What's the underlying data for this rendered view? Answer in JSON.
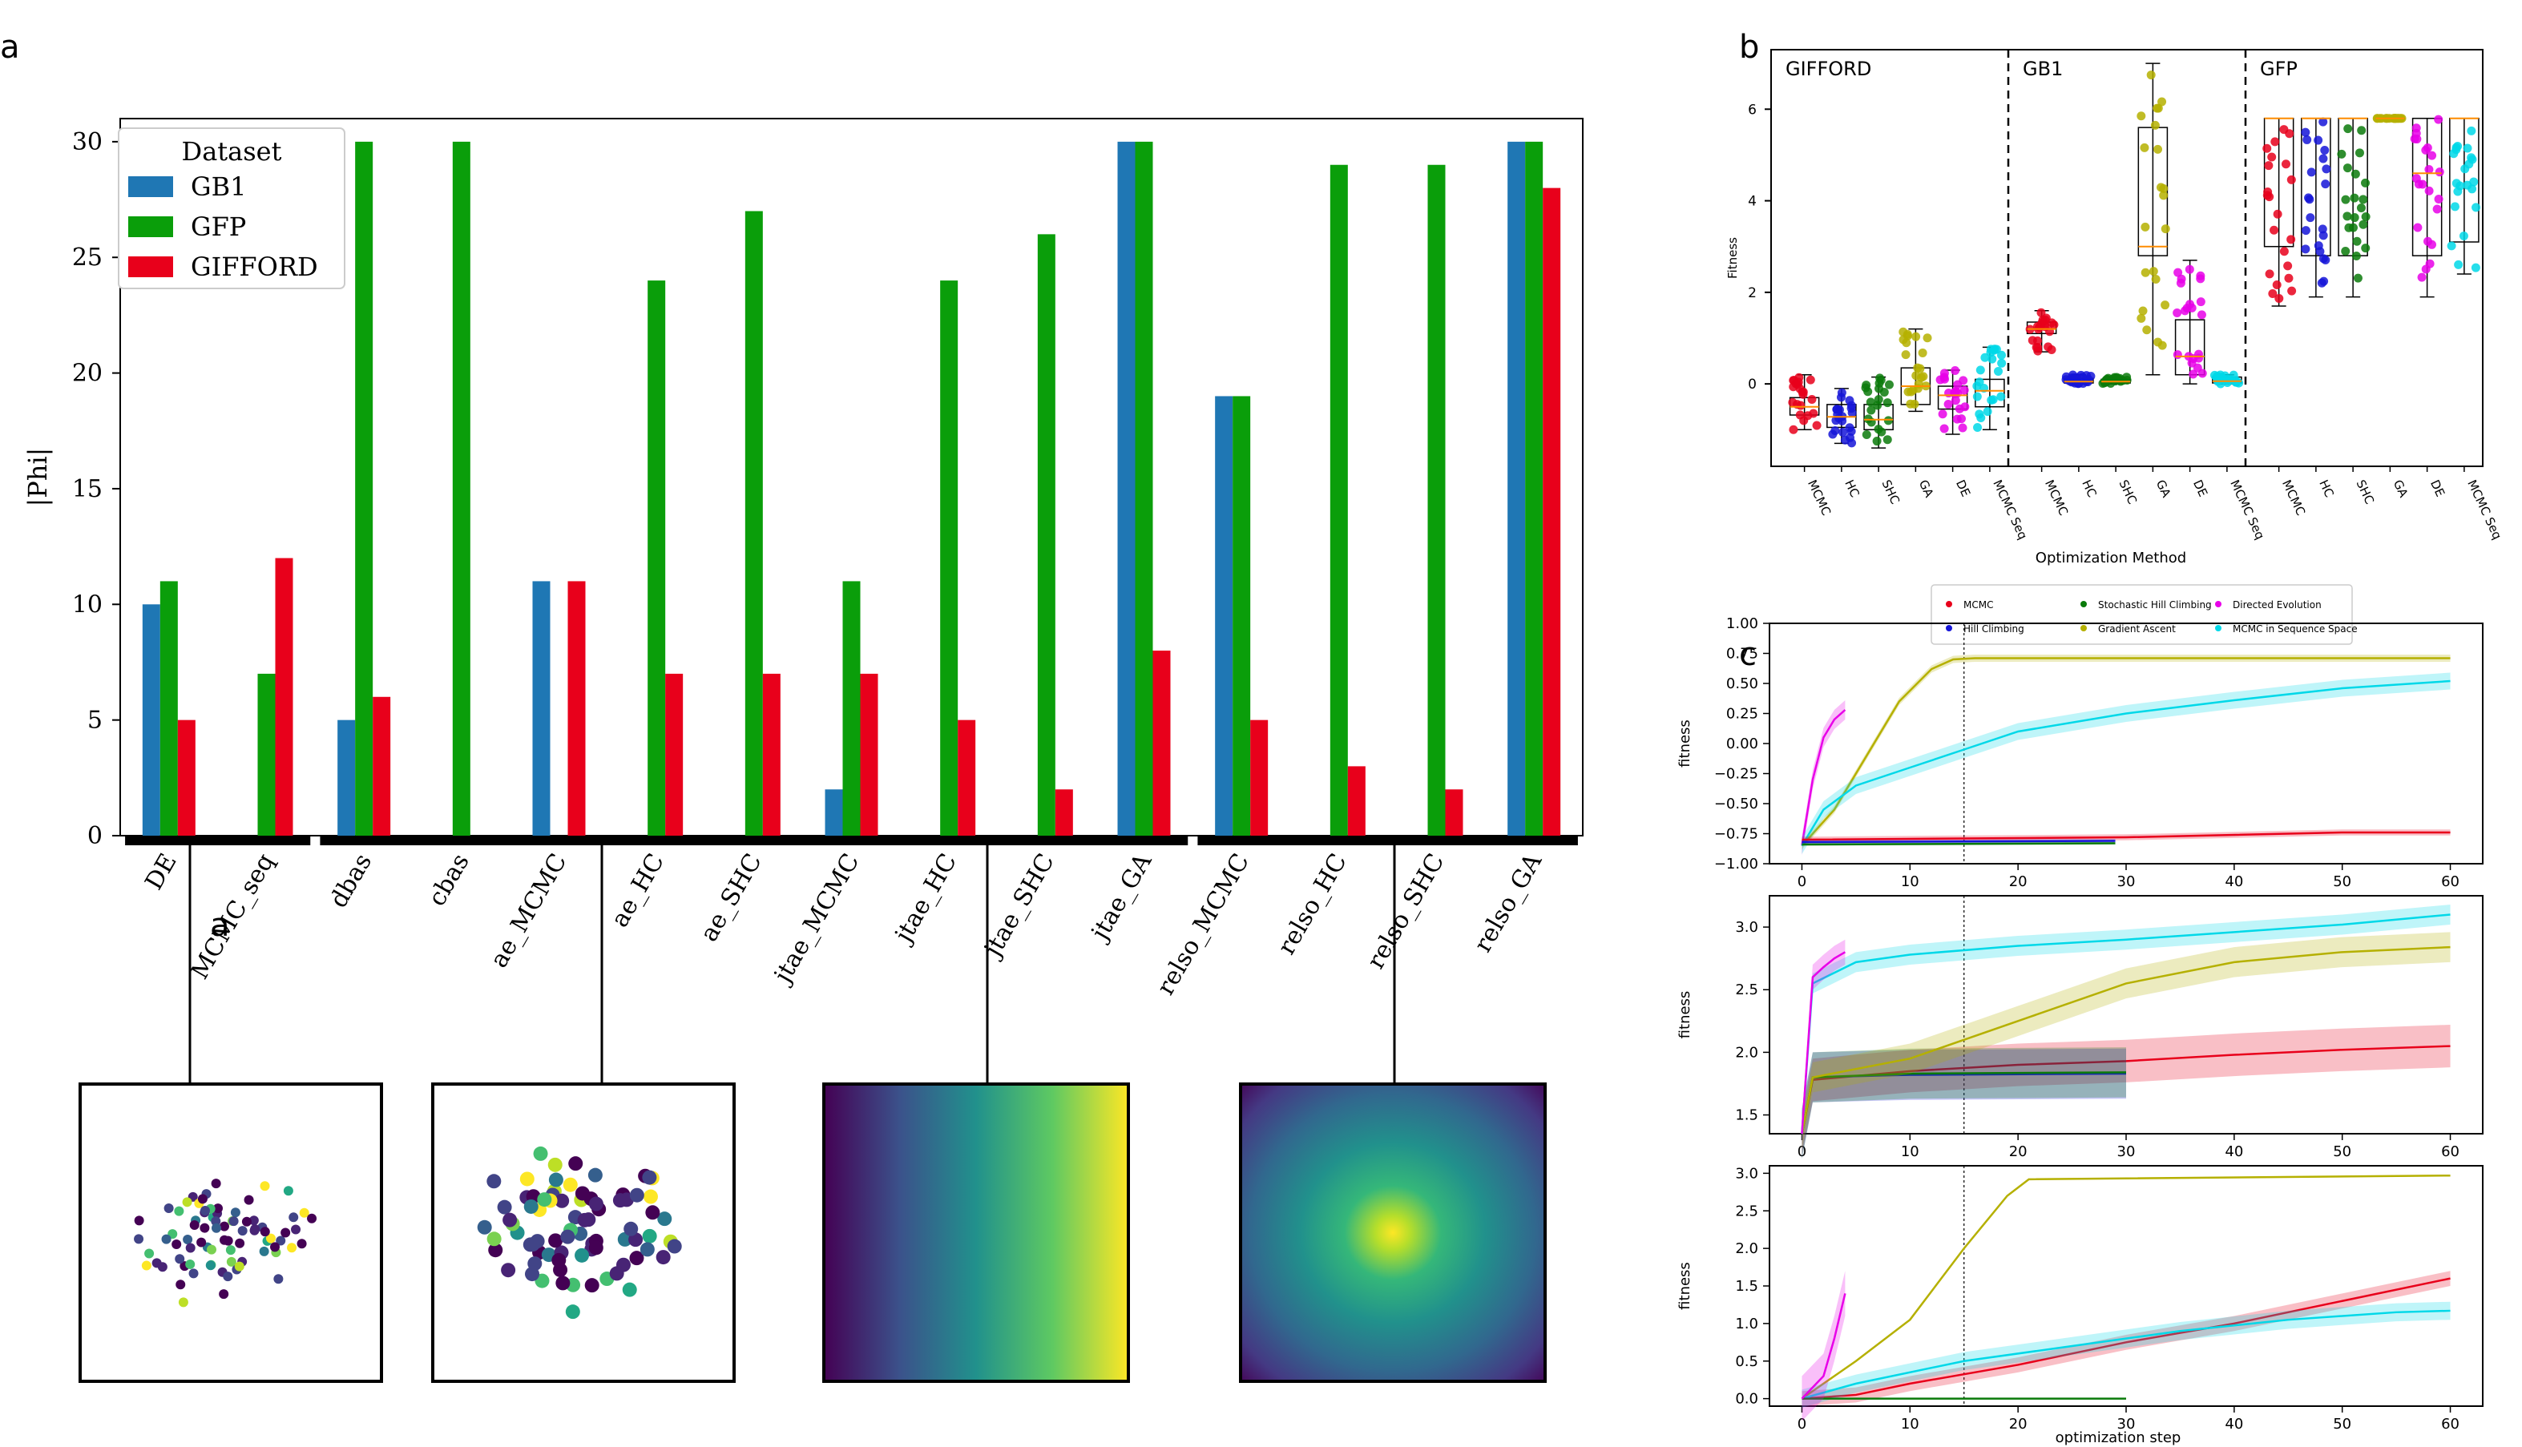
{
  "panel_letters": {
    "a": "a",
    "b": "b",
    "c": "c",
    "a_inner": "a"
  },
  "chart_data": [
    {
      "id": "a",
      "type": "bar",
      "ylabel": "|Phi|",
      "ylim": [
        0,
        31
      ],
      "yticks": [
        0,
        5,
        10,
        15,
        20,
        25,
        30
      ],
      "categories": [
        "DE",
        "MCMC_seq",
        "dbas",
        "cbas",
        "ae_MCMC",
        "ae_HC",
        "ae_SHC",
        "jtae_MCMC",
        "jtae_HC",
        "jtae_SHC",
        "jtae_GA",
        "relso_MCMC",
        "relso_HC",
        "relso_SHC",
        "relso_GA"
      ],
      "legend": {
        "title": "Dataset",
        "placement": "top-left"
      },
      "series": [
        {
          "name": "GB1",
          "color": "#1f77b4",
          "values": [
            10,
            0,
            5,
            0,
            11,
            0,
            0,
            2,
            0,
            0,
            30,
            19,
            0,
            0,
            30
          ]
        },
        {
          "name": "GFP",
          "color": "#0a9e0a",
          "values": [
            11,
            7,
            30,
            30,
            0,
            24,
            27,
            11,
            24,
            26,
            30,
            19,
            29,
            29,
            30
          ]
        },
        {
          "name": "GIFFORD",
          "color": "#e8001b",
          "values": [
            5,
            12,
            6,
            0,
            11,
            7,
            7,
            7,
            5,
            2,
            8,
            5,
            3,
            2,
            28
          ]
        }
      ],
      "groups": [
        [
          0,
          1
        ],
        [
          2,
          10
        ],
        [
          11,
          14
        ]
      ]
    },
    {
      "id": "b",
      "type": "box",
      "xlabel": "Optimization Method",
      "ylabel": "Fitness",
      "ylim": [
        -1.8,
        7.3
      ],
      "yticks": [
        0,
        2,
        4,
        6
      ],
      "facets": [
        {
          "name": "GIFFORD",
          "methods": [
            {
              "label": "MCMC",
              "color": "#e8001b",
              "q1": -0.68,
              "med": -0.5,
              "q3": -0.3,
              "lo": -1.0,
              "hi": 0.2
            },
            {
              "label": "HC",
              "color": "#1515d8",
              "q1": -0.95,
              "med": -0.72,
              "q3": -0.45,
              "lo": -1.3,
              "hi": -0.1
            },
            {
              "label": "SHC",
              "color": "#0a7a0a",
              "q1": -1.0,
              "med": -0.78,
              "q3": -0.45,
              "lo": -1.4,
              "hi": 0.15
            },
            {
              "label": "GA",
              "color": "#b5b000",
              "q1": -0.45,
              "med": -0.05,
              "q3": 0.35,
              "lo": -0.6,
              "hi": 1.2
            },
            {
              "label": "DE",
              "color": "#e800e8",
              "q1": -0.55,
              "med": -0.25,
              "q3": -0.05,
              "lo": -1.1,
              "hi": 0.3
            },
            {
              "label": "MCMC Seq",
              "color": "#00d8e8",
              "q1": -0.5,
              "med": -0.15,
              "q3": 0.1,
              "lo": -1.0,
              "hi": 0.8
            }
          ]
        },
        {
          "name": "GB1",
          "methods": [
            {
              "label": "MCMC",
              "color": "#e8001b",
              "q1": 1.1,
              "med": 1.2,
              "q3": 1.35,
              "lo": 0.7,
              "hi": 1.6
            },
            {
              "label": "HC",
              "color": "#1515d8",
              "q1": 0.02,
              "med": 0.05,
              "q3": 0.12,
              "lo": 0.0,
              "hi": 0.2
            },
            {
              "label": "SHC",
              "color": "#0a7a0a",
              "q1": 0.02,
              "med": 0.05,
              "q3": 0.1,
              "lo": 0.0,
              "hi": 0.15
            },
            {
              "label": "GA",
              "color": "#b5b000",
              "q1": 2.8,
              "med": 3.0,
              "q3": 5.6,
              "lo": 0.2,
              "hi": 7.0
            },
            {
              "label": "DE",
              "color": "#e800e8",
              "q1": 0.2,
              "med": 0.6,
              "q3": 1.4,
              "lo": 0.0,
              "hi": 2.7
            },
            {
              "label": "MCMC Seq",
              "color": "#00d8e8",
              "q1": 0.02,
              "med": 0.06,
              "q3": 0.15,
              "lo": 0.0,
              "hi": 0.2
            }
          ]
        },
        {
          "name": "GFP",
          "methods": [
            {
              "label": "MCMC",
              "color": "#e8001b",
              "q1": 3.0,
              "med": 5.8,
              "q3": 5.8,
              "lo": 1.7,
              "hi": 5.8
            },
            {
              "label": "HC",
              "color": "#1515d8",
              "q1": 2.8,
              "med": 5.8,
              "q3": 5.8,
              "lo": 1.9,
              "hi": 5.8
            },
            {
              "label": "SHC",
              "color": "#0a7a0a",
              "q1": 2.8,
              "med": 5.8,
              "q3": 5.8,
              "lo": 1.9,
              "hi": 5.8
            },
            {
              "label": "GA",
              "color": "#b5b000",
              "q1": 5.8,
              "med": 5.8,
              "q3": 5.8,
              "lo": 5.8,
              "hi": 5.8
            },
            {
              "label": "DE",
              "color": "#e800e8",
              "q1": 2.8,
              "med": 4.6,
              "q3": 5.8,
              "lo": 1.9,
              "hi": 5.8
            },
            {
              "label": "MCMC Seq",
              "color": "#00d8e8",
              "q1": 3.1,
              "med": 5.8,
              "q3": 5.8,
              "lo": 2.4,
              "hi": 5.8
            }
          ]
        }
      ]
    },
    {
      "id": "c",
      "type": "line",
      "legend": [
        {
          "name": "MCMC",
          "color": "#e8001b"
        },
        {
          "name": "Stochastic Hill Climbing",
          "color": "#0a7a0a"
        },
        {
          "name": "Directed Evolution",
          "color": "#e800e8"
        },
        {
          "name": "Hill Climbing",
          "color": "#1515d8"
        },
        {
          "name": "Gradient Ascent",
          "color": "#b5b000"
        },
        {
          "name": "MCMC in Sequence Space",
          "color": "#00d8e8"
        }
      ],
      "xlabel": "optimization step",
      "xticks": [
        0,
        10,
        20,
        30,
        40,
        50,
        60
      ],
      "xlim": [
        -3,
        63
      ],
      "vline_x": 15,
      "subplots": [
        {
          "ylabel": "fitness",
          "ylim": [
            -1.0,
            1.0
          ],
          "yticks": [
            -1.0,
            -0.75,
            -0.5,
            -0.25,
            0.0,
            0.25,
            0.5,
            0.75,
            1.0
          ],
          "ytick_labels": [
            "−1.00",
            "−0.75",
            "−0.50",
            "−0.25",
            "0.00",
            "0.25",
            "0.50",
            "0.75",
            "1.00"
          ],
          "series": [
            {
              "name": "Directed Evolution",
              "color": "#e800e8",
              "band": 0.08,
              "points": [
                [
                  0,
                  -0.85
                ],
                [
                  1,
                  -0.3
                ],
                [
                  2,
                  0.05
                ],
                [
                  3,
                  0.2
                ],
                [
                  4,
                  0.28
                ]
              ]
            },
            {
              "name": "Gradient Ascent",
              "color": "#b5b000",
              "band": 0.03,
              "points": [
                [
                  0,
                  -0.85
                ],
                [
                  3,
                  -0.55
                ],
                [
                  6,
                  -0.1
                ],
                [
                  9,
                  0.35
                ],
                [
                  12,
                  0.62
                ],
                [
                  14,
                  0.7
                ],
                [
                  16,
                  0.71
                ],
                [
                  60,
                  0.71
                ]
              ]
            },
            {
              "name": "MCMC in Sequence Space",
              "color": "#00d8e8",
              "band": 0.07,
              "points": [
                [
                  0,
                  -0.85
                ],
                [
                  2,
                  -0.55
                ],
                [
                  5,
                  -0.35
                ],
                [
                  10,
                  -0.2
                ],
                [
                  15,
                  -0.05
                ],
                [
                  20,
                  0.1
                ],
                [
                  30,
                  0.25
                ],
                [
                  40,
                  0.36
                ],
                [
                  50,
                  0.46
                ],
                [
                  60,
                  0.52
                ]
              ]
            },
            {
              "name": "MCMC",
              "color": "#e8001b",
              "band": 0.025,
              "points": [
                [
                  0,
                  -0.8
                ],
                [
                  30,
                  -0.78
                ],
                [
                  50,
                  -0.74
                ],
                [
                  60,
                  -0.74
                ]
              ]
            },
            {
              "name": "Hill Climbing",
              "color": "#1515d8",
              "band": 0.015,
              "points": [
                [
                  0,
                  -0.82
                ],
                [
                  29,
                  -0.81
                ]
              ]
            },
            {
              "name": "Stochastic Hill Climbing",
              "color": "#0a7a0a",
              "band": 0.01,
              "points": [
                [
                  0,
                  -0.84
                ],
                [
                  29,
                  -0.83
                ]
              ]
            }
          ]
        },
        {
          "ylabel": "fitness",
          "ylim": [
            1.35,
            3.25
          ],
          "yticks": [
            1.5,
            2.0,
            2.5,
            3.0
          ],
          "ytick_labels": [
            "1.5",
            "2.0",
            "2.5",
            "3.0"
          ],
          "series": [
            {
              "name": "MCMC",
              "color": "#e8001b",
              "band": 0.17,
              "points": [
                [
                  0,
                  1.35
                ],
                [
                  1,
                  1.78
                ],
                [
                  10,
                  1.85
                ],
                [
                  20,
                  1.9
                ],
                [
                  30,
                  1.93
                ],
                [
                  40,
                  1.98
                ],
                [
                  50,
                  2.02
                ],
                [
                  60,
                  2.05
                ]
              ]
            },
            {
              "name": "Hill Climbing",
              "color": "#1515d8",
              "band": 0.2,
              "points": [
                [
                  0,
                  1.35
                ],
                [
                  1,
                  1.8
                ],
                [
                  10,
                  1.82
                ],
                [
                  30,
                  1.83
                ]
              ]
            },
            {
              "name": "Stochastic Hill Climbing",
              "color": "#0a7a0a",
              "band": 0.2,
              "points": [
                [
                  0,
                  1.35
                ],
                [
                  1,
                  1.8
                ],
                [
                  10,
                  1.83
                ],
                [
                  30,
                  1.84
                ]
              ]
            },
            {
              "name": "Gradient Ascent",
              "color": "#b5b000",
              "band": 0.12,
              "points": [
                [
                  0,
                  1.35
                ],
                [
                  1,
                  1.8
                ],
                [
                  10,
                  1.95
                ],
                [
                  20,
                  2.25
                ],
                [
                  30,
                  2.55
                ],
                [
                  40,
                  2.72
                ],
                [
                  50,
                  2.8
                ],
                [
                  60,
                  2.84
                ]
              ]
            },
            {
              "name": "MCMC in Sequence Space",
              "color": "#00d8e8",
              "band": 0.08,
              "points": [
                [
                  0,
                  1.35
                ],
                [
                  1,
                  2.55
                ],
                [
                  5,
                  2.72
                ],
                [
                  10,
                  2.78
                ],
                [
                  20,
                  2.85
                ],
                [
                  30,
                  2.9
                ],
                [
                  40,
                  2.96
                ],
                [
                  50,
                  3.02
                ],
                [
                  60,
                  3.1
                ]
              ]
            },
            {
              "name": "Directed Evolution",
              "color": "#e800e8",
              "band": 0.1,
              "points": [
                [
                  0,
                  1.35
                ],
                [
                  1,
                  2.6
                ],
                [
                  2,
                  2.68
                ],
                [
                  3,
                  2.75
                ],
                [
                  4,
                  2.8
                ]
              ]
            }
          ]
        },
        {
          "ylabel": "fitness",
          "ylim": [
            -0.1,
            3.1
          ],
          "yticks": [
            0.0,
            0.5,
            1.0,
            1.5,
            2.0,
            2.5,
            3.0
          ],
          "ytick_labels": [
            "0.0",
            "0.5",
            "1.0",
            "1.5",
            "2.0",
            "2.5",
            "3.0"
          ],
          "series": [
            {
              "name": "Gradient Ascent",
              "color": "#b5b000",
              "band": 0.01,
              "points": [
                [
                  0,
                  0.0
                ],
                [
                  5,
                  0.5
                ],
                [
                  10,
                  1.05
                ],
                [
                  15,
                  2.0
                ],
                [
                  19,
                  2.7
                ],
                [
                  21,
                  2.92
                ],
                [
                  60,
                  2.97
                ]
              ]
            },
            {
              "name": "MCMC",
              "color": "#e8001b",
              "band": 0.1,
              "points": [
                [
                  0,
                  0.0
                ],
                [
                  5,
                  0.05
                ],
                [
                  10,
                  0.2
                ],
                [
                  20,
                  0.45
                ],
                [
                  30,
                  0.75
                ],
                [
                  40,
                  1.0
                ],
                [
                  50,
                  1.3
                ],
                [
                  60,
                  1.6
                ]
              ]
            },
            {
              "name": "MCMC in Sequence Space",
              "color": "#00d8e8",
              "band": 0.12,
              "points": [
                [
                  0,
                  0.0
                ],
                [
                  5,
                  0.2
                ],
                [
                  15,
                  0.5
                ],
                [
                  25,
                  0.7
                ],
                [
                  35,
                  0.9
                ],
                [
                  45,
                  1.05
                ],
                [
                  55,
                  1.15
                ],
                [
                  60,
                  1.17
                ]
              ]
            },
            {
              "name": "Stochastic Hill Climbing",
              "color": "#0a7a0a",
              "band": 0.0,
              "points": [
                [
                  0,
                  0.0
                ],
                [
                  30,
                  0.0
                ]
              ]
            },
            {
              "name": "Directed Evolution",
              "color": "#e800e8",
              "band": 0.3,
              "points": [
                [
                  0,
                  0.0
                ],
                [
                  2,
                  0.3
                ],
                [
                  3,
                  0.8
                ],
                [
                  4,
                  1.4
                ]
              ]
            }
          ]
        }
      ]
    }
  ],
  "insets": [
    {
      "type": "scatter",
      "colormap": "viridis",
      "point_count": 80
    },
    {
      "type": "scatter",
      "colormap": "viridis",
      "point_count": 80
    },
    {
      "type": "linear-gradient",
      "colormap": "viridis"
    },
    {
      "type": "radial-gradient",
      "colormap": "viridis"
    }
  ]
}
